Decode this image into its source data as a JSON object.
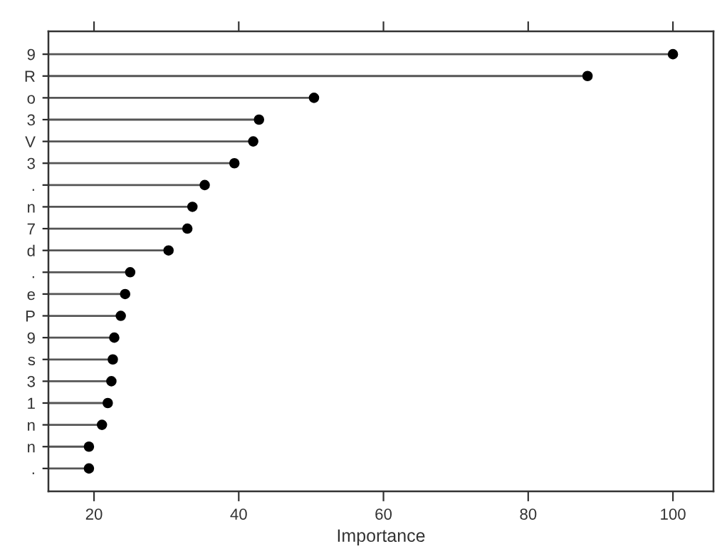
{
  "chart_data": {
    "type": "lollipop",
    "orientation": "horizontal",
    "xlabel": "Importance",
    "categories": [
      "9",
      "R",
      "o",
      "3",
      "V",
      "3",
      ".",
      "n",
      "7",
      "d",
      ".",
      "e",
      "P",
      "9",
      "s",
      "3",
      "1",
      "n",
      "n",
      "."
    ],
    "series": [
      {
        "color": "#000000",
        "values": [
          100.0,
          88.2,
          50.4,
          42.8,
          42.0,
          39.4,
          35.3,
          33.6,
          32.9,
          30.3,
          25.0,
          24.3,
          23.7,
          22.8,
          22.6,
          22.4,
          21.9,
          21.1,
          19.3,
          19.3
        ]
      }
    ],
    "xlim": [
      13.7,
      105.6
    ],
    "xticks": [
      20,
      40,
      60,
      80,
      100
    ],
    "marker": "circle"
  }
}
